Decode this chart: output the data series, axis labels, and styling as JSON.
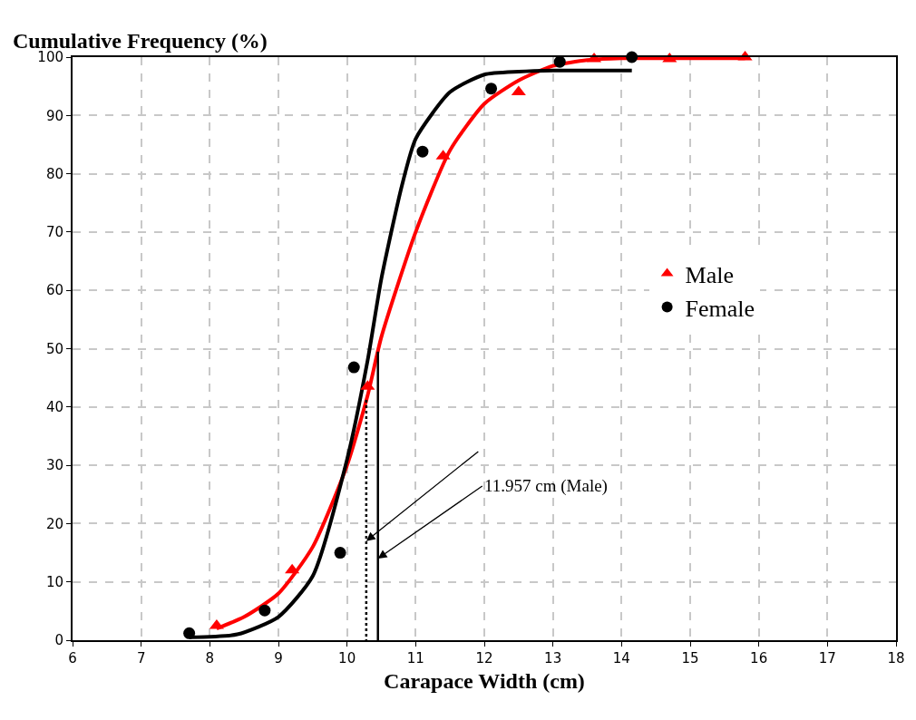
{
  "chart_data": {
    "type": "scatter",
    "ylabel": "Cumulative Frequency (%)",
    "xlabel": "Carapace Width (cm)",
    "xlim": [
      6,
      18
    ],
    "xticks": [
      6,
      7,
      8,
      9,
      10,
      11,
      12,
      13,
      14,
      15,
      16,
      17,
      18
    ],
    "ylim": [
      0,
      100
    ],
    "yticks": [
      0,
      10,
      20,
      30,
      40,
      50,
      60,
      70,
      80,
      90,
      100
    ],
    "grid": true,
    "legend": "right",
    "series": [
      {
        "name": "Male",
        "type": "scatter",
        "marker": "triangle",
        "color": "#ff0000",
        "x": [
          8.1,
          9.2,
          10.3,
          11.4,
          12.5,
          13.6,
          14.7,
          15.8
        ],
        "values": [
          2.5,
          12,
          43.5,
          83,
          94,
          99.7,
          99.7,
          100
        ]
      },
      {
        "name": "Female",
        "type": "scatter",
        "marker": "circle",
        "color": "#000000",
        "x": [
          7.7,
          8.8,
          9.9,
          10.1,
          11.1,
          12.1,
          13.1,
          14.15
        ],
        "values": [
          1.2,
          5.1,
          15,
          46.8,
          83.8,
          94.6,
          99.2,
          100
        ]
      },
      {
        "type": "line",
        "marker": "none",
        "line_style": "solid",
        "color": "#ff0000",
        "x": [
          8.1,
          8.5,
          9,
          9.5,
          10,
          10.3,
          10.5,
          11,
          11.5,
          12,
          12.5,
          13,
          13.5,
          14,
          15,
          15.8
        ],
        "values": [
          2,
          4,
          8,
          16,
          30,
          42,
          52,
          70,
          84,
          92,
          96,
          98.5,
          99.5,
          99.8,
          99.8,
          99.8
        ]
      },
      {
        "type": "line",
        "marker": "none",
        "line_style": "solid",
        "color": "#000000",
        "x": [
          7.7,
          8.4,
          9,
          9.5,
          10,
          10.3,
          10.5,
          10.8,
          11,
          11.5,
          12,
          12.5,
          13,
          14.15
        ],
        "values": [
          0.5,
          1,
          4,
          11,
          31,
          48,
          62,
          78,
          86,
          94,
          97,
          97.5,
          97.7,
          97.7
        ]
      }
    ],
    "ref_lines": [
      {
        "axis": "x",
        "value": 10.28,
        "line_style": "dotted",
        "color": "#000000"
      },
      {
        "axis": "x",
        "value": 10.45,
        "line_style": "solid",
        "color": "#000000"
      }
    ],
    "annotations": [
      {
        "text": "11.957 cm (Male)",
        "x": 10.45,
        "y": 14
      }
    ]
  }
}
